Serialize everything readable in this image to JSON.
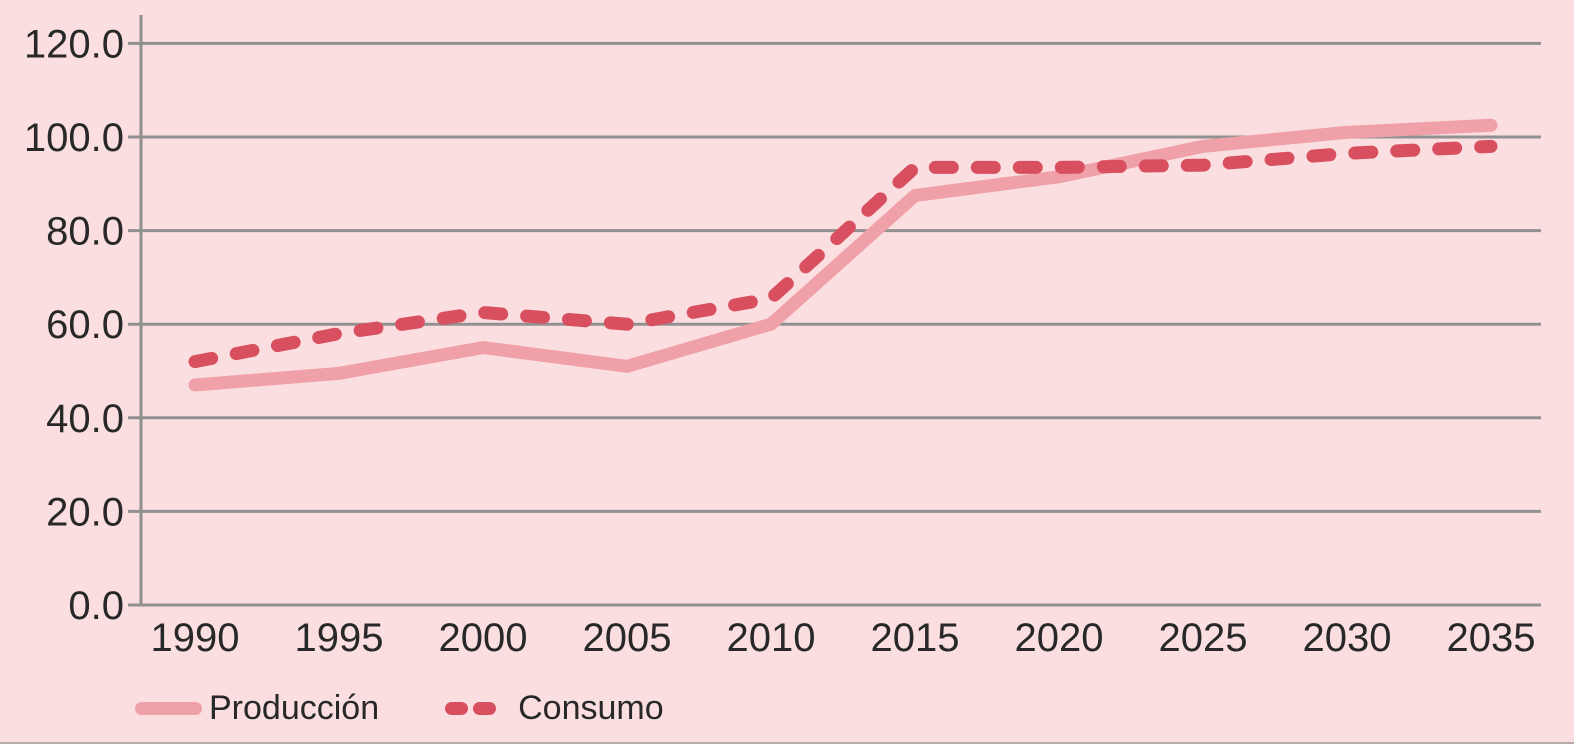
{
  "figure": {
    "background_color": "#fbdfe0",
    "gridline_color": "#919191",
    "axis_line_color": "#8f8f8f",
    "text_color": "#282828",
    "bottom_border_color": "#9e9898"
  },
  "chart_data": {
    "type": "line",
    "title": "",
    "xlabel": "",
    "ylabel": "",
    "categories": [
      "1990",
      "1995",
      "2000",
      "2005",
      "2010",
      "2015",
      "2020",
      "2025",
      "2030",
      "2035"
    ],
    "series": [
      {
        "name": "Producción",
        "style": "solid",
        "color": "#f0a0a8",
        "values": [
          47,
          49.5,
          55,
          51,
          60,
          87.5,
          91.5,
          98,
          101,
          102.5
        ]
      },
      {
        "name": "Consumo",
        "style": "dashed",
        "color": "#d8505f",
        "values": [
          52,
          58,
          62.5,
          60,
          65.5,
          93.5,
          93.5,
          94,
          96.5,
          98
        ]
      }
    ],
    "ylim": [
      0,
      120
    ],
    "y_tick_step": 20,
    "y_ticks": [
      "0.0",
      "20.0",
      "40.0",
      "60.0",
      "80.0",
      "100.0",
      "120.0"
    ],
    "grid": "horizontal",
    "legend_position": "bottom-left"
  }
}
